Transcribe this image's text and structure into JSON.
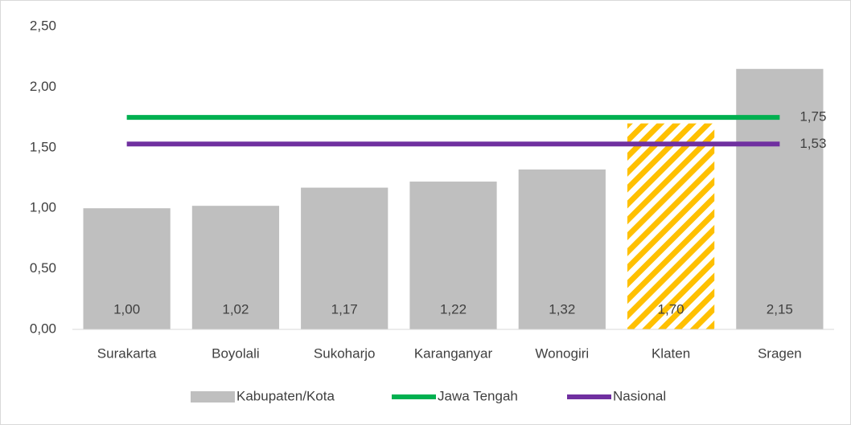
{
  "chart_data": {
    "type": "bar",
    "categories": [
      "Surakarta",
      "Boyolali",
      "Sukoharjo",
      "Karanganyar",
      "Wonogiri",
      "Klaten",
      "Sragen"
    ],
    "series": [
      {
        "name": "Kabupaten/Kota",
        "type": "bar",
        "color": "#bfbfbf",
        "values": [
          1.0,
          1.02,
          1.17,
          1.22,
          1.32,
          1.7,
          2.15
        ],
        "value_labels": [
          "1,00",
          "1,02",
          "1,17",
          "1,22",
          "1,32",
          "1,70",
          "2,15"
        ],
        "highlight": {
          "index": 5,
          "color": "#ffc000"
        }
      },
      {
        "name": "Jawa Tengah",
        "type": "line",
        "color": "#00b050",
        "values": [
          1.75,
          1.75,
          1.75,
          1.75,
          1.75,
          1.75,
          1.75
        ],
        "end_label": "1,75"
      },
      {
        "name": "Nasional",
        "type": "line",
        "color": "#7030a0",
        "values": [
          1.53,
          1.53,
          1.53,
          1.53,
          1.53,
          1.53,
          1.53
        ],
        "end_label": "1,53"
      }
    ],
    "ylim": [
      0,
      2.5
    ],
    "yticks": [
      {
        "value": 0,
        "label": "0,00"
      },
      {
        "value": 0.5,
        "label": "0,50"
      },
      {
        "value": 1,
        "label": "1,00"
      },
      {
        "value": 1.5,
        "label": "1,50"
      },
      {
        "value": 2,
        "label": "2,00"
      },
      {
        "value": 2.5,
        "label": "2,50"
      }
    ],
    "legend": "bottom"
  }
}
